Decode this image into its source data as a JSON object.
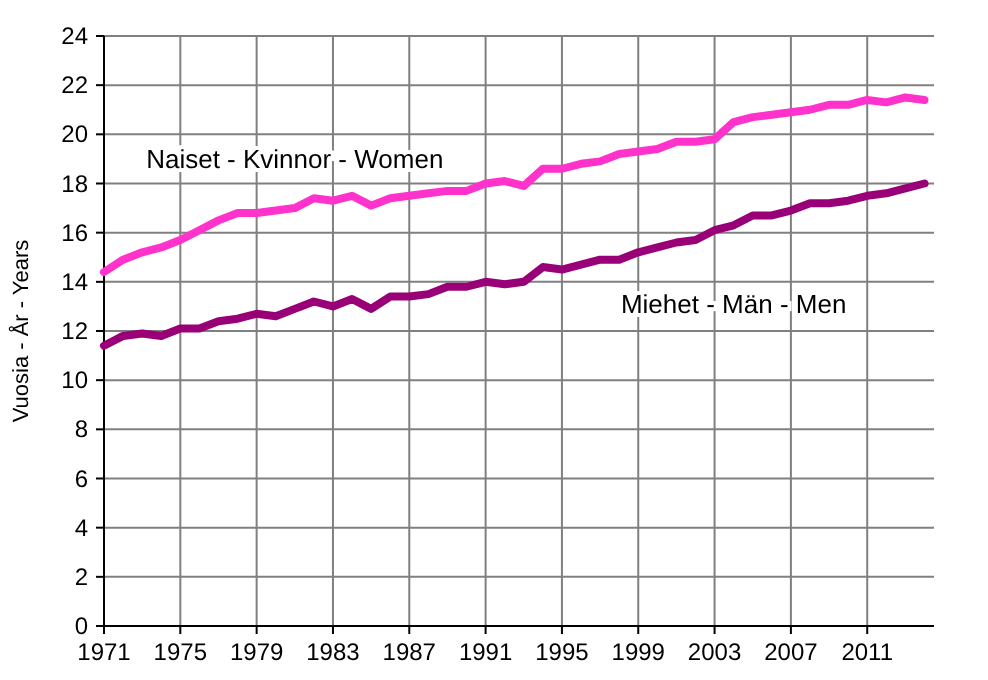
{
  "chart_data": {
    "type": "line",
    "ylabel": "Vuosia - År - Years",
    "xlim": [
      1971,
      2014.5
    ],
    "xticks": [
      1971,
      1975,
      1979,
      1983,
      1987,
      1991,
      1995,
      1999,
      2003,
      2007,
      2011
    ],
    "ylim": [
      0,
      24
    ],
    "yticks": [
      0,
      2,
      4,
      6,
      8,
      10,
      12,
      14,
      16,
      18,
      20,
      22,
      24
    ],
    "grid": true,
    "legend": false,
    "marker": "none",
    "line_style": "solid",
    "x": [
      1971,
      1972,
      1973,
      1974,
      1975,
      1976,
      1977,
      1978,
      1979,
      1980,
      1981,
      1982,
      1983,
      1984,
      1985,
      1986,
      1987,
      1988,
      1989,
      1990,
      1991,
      1992,
      1993,
      1994,
      1995,
      1996,
      1997,
      1998,
      1999,
      2000,
      2001,
      2002,
      2003,
      2004,
      2005,
      2006,
      2007,
      2008,
      2009,
      2010,
      2011,
      2012,
      2013,
      2014
    ],
    "series": [
      {
        "name": "Naiset - Kvinnor  - Women",
        "color": "#ff33cc",
        "values": [
          14.4,
          14.9,
          15.2,
          15.4,
          15.7,
          16.1,
          16.5,
          16.8,
          16.8,
          16.9,
          17.0,
          17.4,
          17.3,
          17.5,
          17.1,
          17.4,
          17.5,
          17.6,
          17.7,
          17.7,
          18.0,
          18.1,
          17.9,
          18.6,
          18.6,
          18.8,
          18.9,
          19.2,
          19.3,
          19.4,
          19.7,
          19.7,
          19.8,
          20.5,
          20.7,
          20.8,
          20.9,
          21.0,
          21.2,
          21.2,
          21.4,
          21.3,
          21.5,
          21.4
        ]
      },
      {
        "name": "Miehet - Män - Men",
        "color": "#990077",
        "values": [
          11.4,
          11.8,
          11.9,
          11.8,
          12.1,
          12.1,
          12.4,
          12.5,
          12.7,
          12.6,
          12.9,
          13.2,
          13.0,
          13.3,
          12.9,
          13.4,
          13.4,
          13.5,
          13.8,
          13.8,
          14.0,
          13.9,
          14.0,
          14.6,
          14.5,
          14.7,
          14.9,
          14.9,
          15.2,
          15.4,
          15.6,
          15.7,
          16.1,
          16.3,
          16.7,
          16.7,
          16.9,
          17.2,
          17.2,
          17.3,
          17.5,
          17.6,
          17.8,
          18.0
        ]
      }
    ]
  }
}
